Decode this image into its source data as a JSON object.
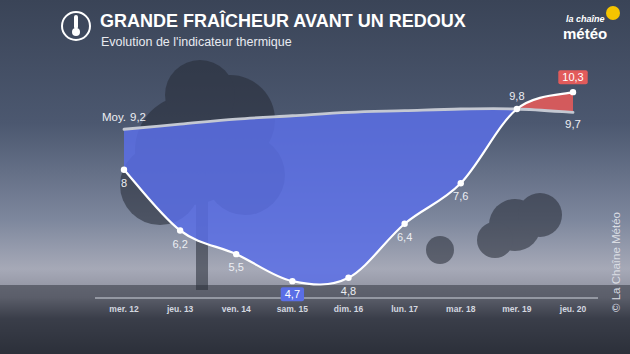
{
  "chart_data": {
    "type": "line",
    "title": "GRANDE FRAÎCHEUR AVANT UN REDOUX",
    "subtitle": "Evolution de l'indicateur thermique",
    "annotations": [
      "la chaîne",
      "météo",
      "© La Chaîne Météo"
    ],
    "categories": [
      "mer. 12",
      "jeu. 13",
      "ven. 14",
      "sam. 15",
      "dim. 16",
      "lun. 17",
      "mar. 18",
      "mer. 19",
      "jeu. 20"
    ],
    "series": [
      {
        "color": "#ffffff",
        "marker": "circle",
        "values": [
          8,
          6.2,
          5.5,
          4.7,
          4.8,
          6.4,
          7.6,
          9.8,
          10.3
        ],
        "value_labels": [
          "8",
          "6,2",
          "5,5",
          "4,7",
          "4,8",
          "6,4",
          "7,6",
          "9,8",
          "10,3"
        ]
      },
      {
        "name": "Moy.",
        "color": "#c4c8d2",
        "values": [
          9.2,
          9.35,
          9.5,
          9.6,
          9.7,
          9.75,
          9.8,
          9.8,
          9.7
        ],
        "value_labels": [
          "9,2",
          null,
          null,
          null,
          null,
          null,
          null,
          null,
          "9,7"
        ]
      }
    ],
    "ylim": [
      4.2,
      10.6
    ],
    "tick_labels": "x",
    "data_labels": true
  }
}
